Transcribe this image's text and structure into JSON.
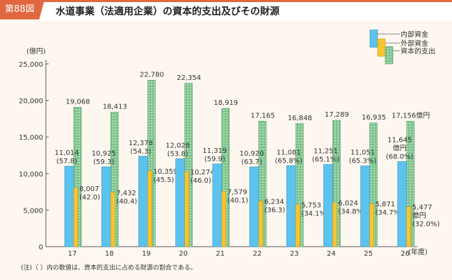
{
  "header": {
    "figure_no": "第88図",
    "title": "水道事業（法適用企業）の資本的支出及びその財源"
  },
  "chart_data": {
    "type": "bar",
    "title": "水道事業（法適用企業）の資本的支出及びその財源",
    "ylabel": "(億円)",
    "xlabel": "(年度)",
    "ylim": [
      0,
      25000
    ],
    "yticks": [
      "0",
      "5,000",
      "10,000",
      "15,000",
      "20,000",
      "25,000"
    ],
    "categories": [
      "17",
      "18",
      "19",
      "20",
      "21",
      "22",
      "23",
      "24",
      "25",
      "26"
    ],
    "legend_position": "top-right",
    "series": [
      {
        "name": "内部資金",
        "color": "#5bc3ee",
        "values": [
          11014,
          10925,
          12378,
          12028,
          11319,
          10920,
          11081,
          11251,
          11051,
          11645
        ],
        "labels": [
          [
            "11,014",
            "(57.8)"
          ],
          [
            "10,925",
            "(59.3)"
          ],
          [
            "12,378",
            "(54.3)"
          ],
          [
            "12,028",
            "(53.8)"
          ],
          [
            "11,319",
            "(59.9)"
          ],
          [
            "10,920",
            "(63.7)"
          ],
          [
            "11,081",
            "(65.8%)"
          ],
          [
            "11,251",
            "(65.1%)"
          ],
          [
            "11,051",
            "(65.3%)"
          ],
          [
            "11,645",
            "億円",
            "(68.0%)"
          ]
        ]
      },
      {
        "name": "外部資金",
        "color": "#f7c531",
        "values": [
          8007,
          7432,
          10359,
          10274,
          7579,
          6234,
          5753,
          6024,
          5871,
          5477
        ],
        "labels": [
          [
            "8,007",
            "(42.0)"
          ],
          [
            "7,432",
            "(40.4)"
          ],
          [
            "10,359",
            "(45.5)"
          ],
          [
            "10,274",
            "(46.0)"
          ],
          [
            "7,579",
            "(40.1)"
          ],
          [
            "6,234",
            "(36.3)"
          ],
          [
            "5,753",
            "(34.1%)"
          ],
          [
            "6,024",
            "(34.8%)"
          ],
          [
            "5,871",
            "(34.7%)"
          ],
          [
            "5,477",
            "億円",
            "(32.0%)"
          ]
        ]
      },
      {
        "name": "資本的支出",
        "color": "#7cc48c",
        "values": [
          19068,
          18413,
          22780,
          22354,
          18919,
          17165,
          16848,
          17289,
          16935,
          17156
        ],
        "labels": [
          "19,068",
          "18,413",
          "22,780",
          "22,354",
          "18,919",
          "17,165",
          "16,848",
          "17,289",
          "16,935",
          "17,156億円"
        ]
      }
    ],
    "note": "(注)（ ）内の数値は、資本的支出に占める財源の割合である。"
  }
}
